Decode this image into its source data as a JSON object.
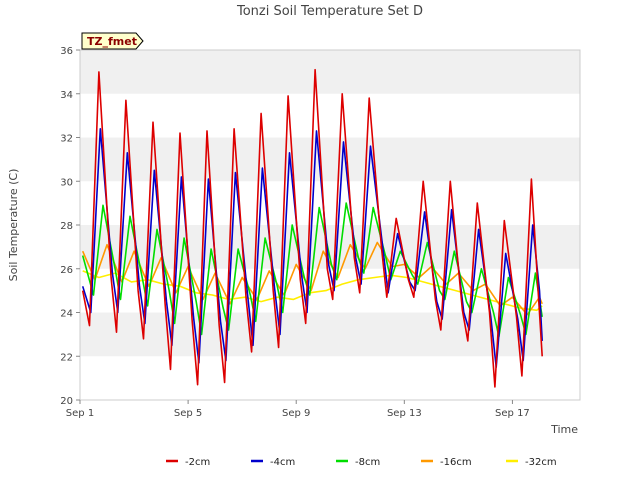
{
  "chart_data": {
    "type": "line",
    "title": "Tonzi Soil Temperature Set D",
    "xlabel": "Time",
    "ylabel": "Soil Temperature (C)",
    "badge": "TZ_fmet",
    "x_unit": "day of September",
    "xlim": [
      1,
      19.5
    ],
    "ylim": [
      20,
      36
    ],
    "x_ticks": [
      1,
      5,
      9,
      13,
      17
    ],
    "x_tick_labels": [
      "Sep 1",
      "Sep 5",
      "Sep 9",
      "Sep 13",
      "Sep 17"
    ],
    "y_ticks": [
      20,
      22,
      24,
      26,
      28,
      30,
      32,
      34,
      36
    ],
    "y_tick_labels": [
      "20",
      "22",
      "24",
      "26",
      "28",
      "30",
      "32",
      "34",
      "36"
    ],
    "grid": "horizontal bands",
    "legend_position": "bottom",
    "colors": {
      "-2cm": "#dd0000",
      "-4cm": "#0000cc",
      "-8cm": "#00dd00",
      "-16cm": "#ff9900",
      "-32cm": "#ffee00"
    },
    "series": [
      {
        "name": "-2cm",
        "points": [
          [
            1.1,
            25.0
          ],
          [
            1.35,
            23.4
          ],
          [
            1.7,
            35.0
          ],
          [
            2.15,
            25.6
          ],
          [
            2.35,
            23.1
          ],
          [
            2.7,
            33.7
          ],
          [
            3.15,
            25.0
          ],
          [
            3.35,
            22.8
          ],
          [
            3.7,
            32.7
          ],
          [
            4.15,
            24.4
          ],
          [
            4.35,
            21.4
          ],
          [
            4.7,
            32.2
          ],
          [
            5.15,
            23.6
          ],
          [
            5.35,
            20.7
          ],
          [
            5.7,
            32.3
          ],
          [
            6.15,
            23.4
          ],
          [
            6.35,
            20.8
          ],
          [
            6.7,
            32.4
          ],
          [
            7.15,
            24.6
          ],
          [
            7.35,
            22.2
          ],
          [
            7.7,
            33.1
          ],
          [
            8.15,
            25.0
          ],
          [
            8.35,
            22.4
          ],
          [
            8.7,
            33.9
          ],
          [
            9.15,
            25.5
          ],
          [
            9.35,
            23.5
          ],
          [
            9.7,
            35.1
          ],
          [
            10.15,
            26.0
          ],
          [
            10.35,
            24.6
          ],
          [
            10.7,
            34.0
          ],
          [
            11.15,
            26.5
          ],
          [
            11.35,
            24.9
          ],
          [
            11.7,
            33.8
          ],
          [
            12.15,
            27.0
          ],
          [
            12.35,
            24.7
          ],
          [
            12.7,
            28.3
          ],
          [
            13.15,
            25.5
          ],
          [
            13.35,
            24.7
          ],
          [
            13.7,
            30.0
          ],
          [
            14.15,
            24.6
          ],
          [
            14.35,
            23.2
          ],
          [
            14.7,
            30.0
          ],
          [
            15.15,
            24.1
          ],
          [
            15.35,
            22.7
          ],
          [
            15.7,
            29.0
          ],
          [
            16.15,
            24.0
          ],
          [
            16.35,
            20.6
          ],
          [
            16.7,
            28.2
          ],
          [
            17.15,
            23.8
          ],
          [
            17.35,
            21.1
          ],
          [
            17.7,
            30.1
          ],
          [
            17.95,
            25.0
          ],
          [
            18.1,
            22.0
          ]
        ]
      },
      {
        "name": "-4cm",
        "points": [
          [
            1.1,
            25.2
          ],
          [
            1.4,
            24.0
          ],
          [
            1.75,
            32.4
          ],
          [
            2.2,
            25.8
          ],
          [
            2.4,
            24.0
          ],
          [
            2.75,
            31.3
          ],
          [
            3.2,
            25.2
          ],
          [
            3.4,
            23.5
          ],
          [
            3.75,
            30.5
          ],
          [
            4.2,
            24.5
          ],
          [
            4.4,
            22.5
          ],
          [
            4.75,
            30.2
          ],
          [
            5.2,
            23.8
          ],
          [
            5.4,
            21.7
          ],
          [
            5.75,
            30.1
          ],
          [
            6.2,
            23.6
          ],
          [
            6.4,
            21.8
          ],
          [
            6.75,
            30.4
          ],
          [
            7.2,
            24.8
          ],
          [
            7.4,
            22.5
          ],
          [
            7.75,
            30.6
          ],
          [
            8.2,
            25.1
          ],
          [
            8.4,
            23.0
          ],
          [
            8.75,
            31.3
          ],
          [
            9.2,
            25.7
          ],
          [
            9.4,
            24.0
          ],
          [
            9.75,
            32.3
          ],
          [
            10.2,
            26.2
          ],
          [
            10.4,
            25.0
          ],
          [
            10.75,
            31.8
          ],
          [
            11.2,
            26.5
          ],
          [
            11.4,
            25.3
          ],
          [
            11.75,
            31.6
          ],
          [
            12.2,
            27.0
          ],
          [
            12.4,
            24.9
          ],
          [
            12.75,
            27.6
          ],
          [
            13.2,
            25.4
          ],
          [
            13.4,
            25.0
          ],
          [
            13.75,
            28.6
          ],
          [
            14.2,
            24.5
          ],
          [
            14.4,
            23.7
          ],
          [
            14.75,
            28.7
          ],
          [
            15.2,
            24.0
          ],
          [
            15.4,
            23.2
          ],
          [
            15.75,
            27.8
          ],
          [
            16.2,
            23.8
          ],
          [
            16.4,
            21.5
          ],
          [
            16.75,
            26.7
          ],
          [
            17.2,
            23.7
          ],
          [
            17.4,
            21.8
          ],
          [
            17.75,
            28.0
          ],
          [
            18.0,
            25.0
          ],
          [
            18.1,
            22.7
          ]
        ]
      },
      {
        "name": "-8cm",
        "points": [
          [
            1.1,
            26.6
          ],
          [
            1.5,
            24.8
          ],
          [
            1.85,
            28.9
          ],
          [
            2.3,
            26.0
          ],
          [
            2.5,
            24.6
          ],
          [
            2.85,
            28.4
          ],
          [
            3.3,
            25.6
          ],
          [
            3.5,
            24.3
          ],
          [
            3.85,
            27.8
          ],
          [
            4.3,
            25.0
          ],
          [
            4.5,
            23.5
          ],
          [
            4.85,
            27.4
          ],
          [
            5.3,
            24.5
          ],
          [
            5.5,
            23.0
          ],
          [
            5.85,
            26.9
          ],
          [
            6.3,
            24.2
          ],
          [
            6.5,
            23.2
          ],
          [
            6.85,
            26.9
          ],
          [
            7.3,
            24.8
          ],
          [
            7.5,
            23.6
          ],
          [
            7.85,
            27.4
          ],
          [
            8.3,
            25.2
          ],
          [
            8.5,
            24.0
          ],
          [
            8.85,
            28.0
          ],
          [
            9.3,
            25.6
          ],
          [
            9.5,
            24.8
          ],
          [
            9.85,
            28.8
          ],
          [
            10.3,
            26.2
          ],
          [
            10.5,
            25.5
          ],
          [
            10.85,
            29.0
          ],
          [
            11.3,
            26.5
          ],
          [
            11.5,
            25.8
          ],
          [
            11.85,
            28.8
          ],
          [
            12.3,
            26.6
          ],
          [
            12.5,
            25.5
          ],
          [
            12.85,
            26.8
          ],
          [
            13.3,
            25.7
          ],
          [
            13.5,
            25.3
          ],
          [
            13.85,
            27.2
          ],
          [
            14.3,
            25.0
          ],
          [
            14.5,
            24.6
          ],
          [
            14.85,
            26.8
          ],
          [
            15.3,
            24.5
          ],
          [
            15.5,
            24.0
          ],
          [
            15.85,
            26.0
          ],
          [
            16.3,
            24.0
          ],
          [
            16.5,
            22.9
          ],
          [
            16.85,
            25.6
          ],
          [
            17.3,
            23.9
          ],
          [
            17.5,
            23.0
          ],
          [
            17.85,
            25.8
          ],
          [
            18.1,
            23.8
          ]
        ]
      },
      {
        "name": "-16cm",
        "points": [
          [
            1.1,
            26.8
          ],
          [
            1.55,
            25.5
          ],
          [
            2.0,
            27.1
          ],
          [
            2.55,
            25.4
          ],
          [
            3.0,
            26.8
          ],
          [
            3.55,
            25.2
          ],
          [
            4.0,
            26.5
          ],
          [
            4.55,
            24.9
          ],
          [
            5.0,
            26.1
          ],
          [
            5.55,
            24.6
          ],
          [
            6.0,
            25.8
          ],
          [
            6.55,
            24.4
          ],
          [
            7.0,
            25.6
          ],
          [
            7.55,
            24.6
          ],
          [
            8.0,
            25.9
          ],
          [
            8.55,
            24.8
          ],
          [
            9.0,
            26.2
          ],
          [
            9.55,
            25.0
          ],
          [
            10.0,
            26.8
          ],
          [
            10.55,
            25.6
          ],
          [
            11.0,
            27.1
          ],
          [
            11.55,
            26.0
          ],
          [
            12.0,
            27.2
          ],
          [
            12.55,
            26.1
          ],
          [
            13.0,
            26.2
          ],
          [
            13.55,
            25.6
          ],
          [
            14.0,
            26.1
          ],
          [
            14.55,
            25.3
          ],
          [
            15.0,
            25.8
          ],
          [
            15.55,
            25.0
          ],
          [
            16.0,
            25.3
          ],
          [
            16.55,
            24.3
          ],
          [
            17.0,
            24.7
          ],
          [
            17.55,
            23.9
          ],
          [
            18.0,
            24.7
          ],
          [
            18.1,
            24.4
          ]
        ]
      },
      {
        "name": "-32cm",
        "points": [
          [
            1.1,
            25.9
          ],
          [
            1.7,
            25.6
          ],
          [
            2.3,
            25.8
          ],
          [
            2.9,
            25.4
          ],
          [
            3.5,
            25.5
          ],
          [
            4.1,
            25.3
          ],
          [
            4.7,
            25.2
          ],
          [
            5.3,
            24.9
          ],
          [
            5.9,
            24.8
          ],
          [
            6.5,
            24.6
          ],
          [
            7.1,
            24.7
          ],
          [
            7.7,
            24.5
          ],
          [
            8.3,
            24.7
          ],
          [
            8.9,
            24.6
          ],
          [
            9.5,
            24.9
          ],
          [
            10.1,
            25.0
          ],
          [
            10.7,
            25.3
          ],
          [
            11.3,
            25.5
          ],
          [
            11.9,
            25.6
          ],
          [
            12.5,
            25.7
          ],
          [
            13.1,
            25.6
          ],
          [
            13.7,
            25.4
          ],
          [
            14.3,
            25.2
          ],
          [
            14.9,
            25.0
          ],
          [
            15.5,
            24.8
          ],
          [
            16.1,
            24.6
          ],
          [
            16.7,
            24.4
          ],
          [
            17.3,
            24.2
          ],
          [
            17.9,
            24.1
          ],
          [
            18.1,
            24.3
          ]
        ]
      }
    ]
  }
}
